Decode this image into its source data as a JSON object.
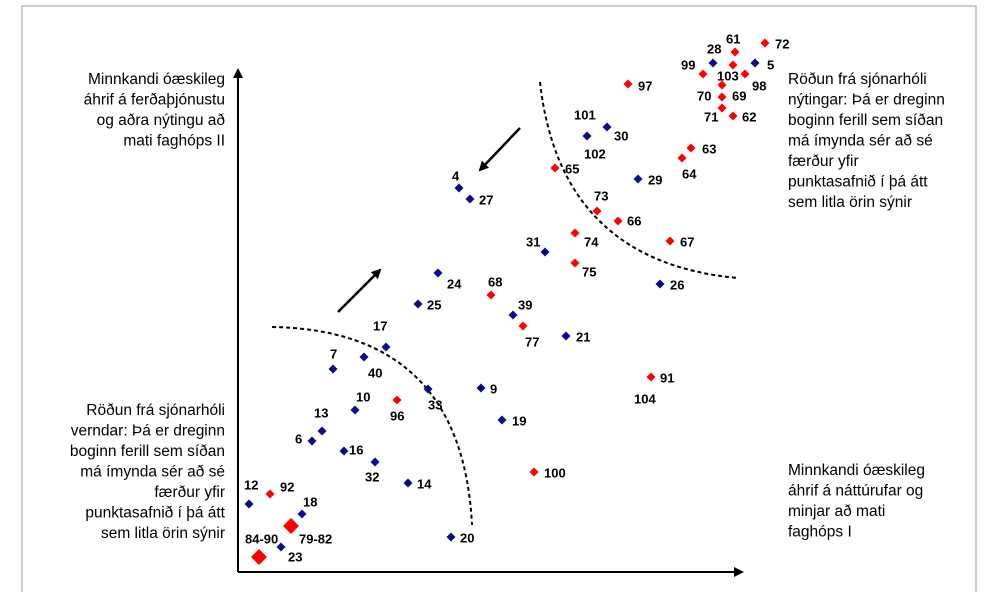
{
  "texts": {
    "top_left": [
      "Minnkandi óæskileg",
      "áhrif á ferðaþjónustu",
      "og aðra nýtingu að",
      "mati faghóps II"
    ],
    "top_right": [
      "Röðun frá sjónarhóli",
      "nýtingar: Þá er dreginn",
      "boginn ferill sem síðan",
      "má ímynda sér að sé",
      "færður yfir",
      "punktasafnið í þá átt",
      "sem litla örin sýnir"
    ],
    "bottom_left": [
      "Röðun frá sjónarhóli",
      "verndar: Þá er dreginn",
      "boginn ferill sem síðan",
      "má ímynda sér að sé",
      "færður yfir",
      "punktasafnið í þá átt",
      "sem litla örin sýnir"
    ],
    "bottom_right": [
      "Minnkandi óæskileg",
      "áhrif á náttúrufar og",
      "minjar að mati",
      "faghóps I"
    ]
  },
  "points": [
    {
      "label": "61",
      "color": "#ff0000"
    },
    {
      "label": "72",
      "color": "#ff0000"
    },
    {
      "label": "28",
      "color": "#0a0a8a"
    },
    {
      "label": "5",
      "color": "#0a0a8a"
    },
    {
      "label": "99",
      "color": "#ff0000"
    },
    {
      "label": "103",
      "color": "#ff0000"
    },
    {
      "label": "98",
      "color": "#ff0000"
    },
    {
      "label": "70",
      "color": "#ff0000"
    },
    {
      "label": "69",
      "color": "#ff0000"
    },
    {
      "label": "71",
      "color": "#ff0000"
    },
    {
      "label": "62",
      "color": "#ff0000"
    },
    {
      "label": "97",
      "color": "#ff0000"
    },
    {
      "label": "101",
      "color": "#0a0a8a"
    },
    {
      "label": "30",
      "color": "#0a0a8a"
    },
    {
      "label": "102",
      "color": "#ff0000"
    },
    {
      "label": "63",
      "color": "#ff0000"
    },
    {
      "label": "64",
      "color": "#ff0000"
    },
    {
      "label": "65",
      "color": "#ff0000"
    },
    {
      "label": "29",
      "color": "#0a0a8a"
    },
    {
      "label": "4",
      "color": "#0a0a8a"
    },
    {
      "label": "27",
      "color": "#0a0a8a"
    },
    {
      "label": "73",
      "color": "#ff0000"
    },
    {
      "label": "66",
      "color": "#ff0000"
    },
    {
      "label": "74",
      "color": "#ff0000"
    },
    {
      "label": "31",
      "color": "#0a0a8a"
    },
    {
      "label": "67",
      "color": "#ff0000"
    },
    {
      "label": "75",
      "color": "#ff0000"
    },
    {
      "label": "24",
      "color": "#0a0a8a"
    },
    {
      "label": "68",
      "color": "#ff0000"
    },
    {
      "label": "26",
      "color": "#0a0a8a"
    },
    {
      "label": "25",
      "color": "#0a0a8a"
    },
    {
      "label": "39",
      "color": "#0a0a8a"
    },
    {
      "label": "77",
      "color": "#ff0000"
    },
    {
      "label": "21",
      "color": "#0a0a8a"
    },
    {
      "label": "17",
      "color": "#0a0a8a"
    },
    {
      "label": "7",
      "color": "#0a0a8a"
    },
    {
      "label": "40",
      "color": "#0a0a8a"
    },
    {
      "label": "91",
      "color": "#ff0000"
    },
    {
      "label": "104",
      "color": "#ff0000"
    },
    {
      "label": "9",
      "color": "#0a0a8a"
    },
    {
      "label": "33",
      "color": "#0a0a8a"
    },
    {
      "label": "10",
      "color": "#0a0a8a"
    },
    {
      "label": "96",
      "color": "#ff0000"
    },
    {
      "label": "19",
      "color": "#0a0a8a"
    },
    {
      "label": "13",
      "color": "#0a0a8a"
    },
    {
      "label": "6",
      "color": "#0a0a8a"
    },
    {
      "label": "16",
      "color": "#0a0a8a"
    },
    {
      "label": "32",
      "color": "#0a0a8a"
    },
    {
      "label": "100",
      "color": "#ff0000"
    },
    {
      "label": "14",
      "color": "#0a0a8a"
    },
    {
      "label": "12",
      "color": "#0a0a8a"
    },
    {
      "label": "92",
      "color": "#ff0000"
    },
    {
      "label": "18",
      "color": "#0a0a8a"
    },
    {
      "label": "79-82",
      "color": "#ff0000"
    },
    {
      "label": "84-90",
      "color": "#ff0000"
    },
    {
      "label": "23",
      "color": "#0a0a8a"
    },
    {
      "label": "20",
      "color": "#0a0a8a"
    }
  ]
}
